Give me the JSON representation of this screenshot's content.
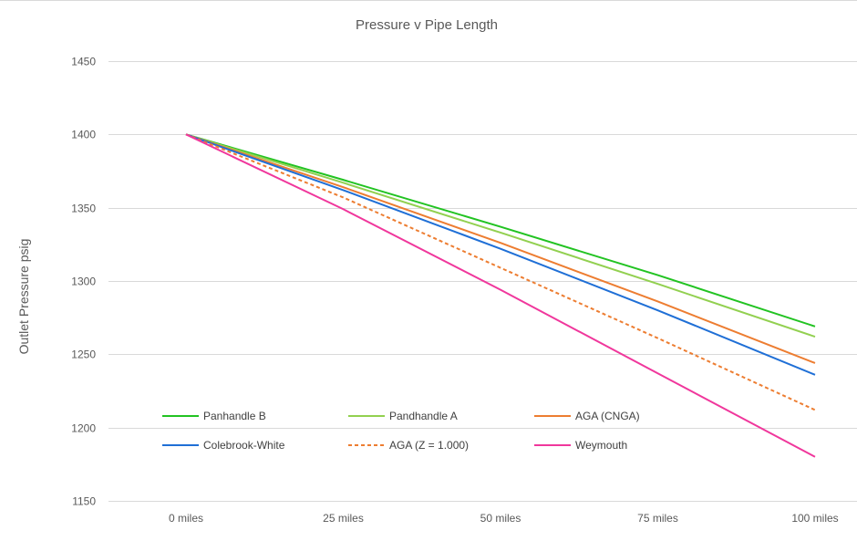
{
  "chart_data": {
    "type": "line",
    "title": "Pressure v Pipe Length",
    "xlabel": "",
    "ylabel": "Outlet Pressure psig",
    "categories": [
      "0 miles",
      "25 miles",
      "50 miles",
      "75 miles",
      "100 miles"
    ],
    "ylim": [
      1150,
      1450
    ],
    "yticks": [
      1150,
      1200,
      1250,
      1300,
      1350,
      1400,
      1450
    ],
    "grid": true,
    "legend_position": "bottom-left inside plot",
    "series": [
      {
        "name": "Panhandle B",
        "color": "#22c322",
        "dash": false,
        "values": [
          1400,
          1369,
          1337,
          1304,
          1269
        ]
      },
      {
        "name": "Pandhandle A",
        "color": "#92d050",
        "dash": false,
        "values": [
          1400,
          1367,
          1333,
          1298,
          1262
        ]
      },
      {
        "name": "AGA (CNGA)",
        "color": "#ed7d31",
        "dash": false,
        "values": [
          1400,
          1364,
          1326,
          1286,
          1244
        ]
      },
      {
        "name": "Colebrook-White",
        "color": "#1f6fd6",
        "dash": false,
        "values": [
          1400,
          1362,
          1322,
          1280,
          1236
        ]
      },
      {
        "name": "AGA (Z = 1.000)",
        "color": "#ed7d31",
        "dash": true,
        "values": [
          1400,
          1357,
          1309,
          1261,
          1212
        ]
      },
      {
        "name": "Weymouth",
        "color": "#f0379c",
        "dash": false,
        "values": [
          1400,
          1349,
          1294,
          1237,
          1180
        ]
      }
    ]
  }
}
